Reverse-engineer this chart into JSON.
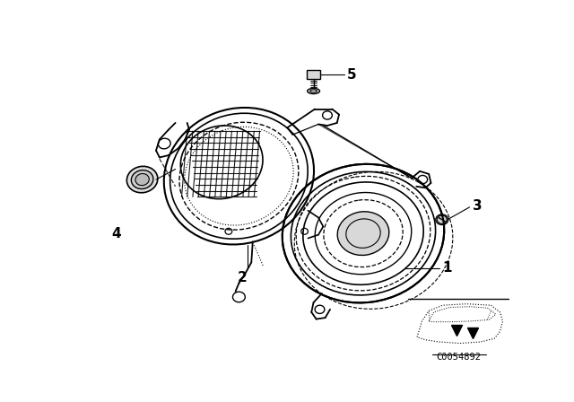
{
  "bg_color": "#ffffff",
  "line_color": "#000000",
  "lw": 1.2,
  "figsize": [
    6.4,
    4.48
  ],
  "dpi": 100,
  "label_fontsize": 11,
  "code_text": "C0054892"
}
